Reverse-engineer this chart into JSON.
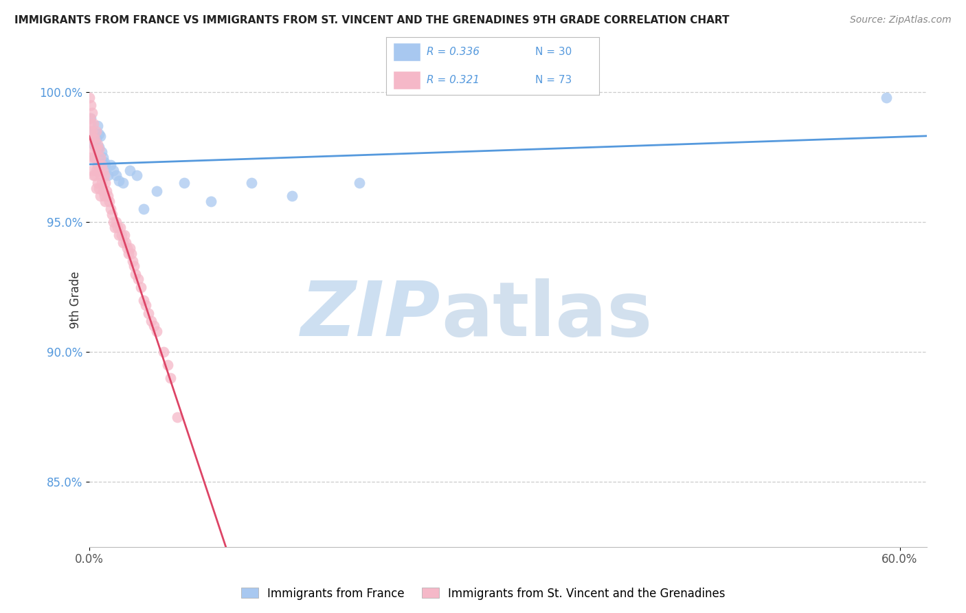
{
  "title": "IMMIGRANTS FROM FRANCE VS IMMIGRANTS FROM ST. VINCENT AND THE GRENADINES 9TH GRADE CORRELATION CHART",
  "source": "Source: ZipAtlas.com",
  "ylabel": "9th Grade",
  "ytick_labels": [
    "85.0%",
    "90.0%",
    "95.0%",
    "100.0%"
  ],
  "ytick_values": [
    0.85,
    0.9,
    0.95,
    1.0
  ],
  "legend_blue_r": "R = 0.336",
  "legend_blue_n": "N = 30",
  "legend_pink_r": "R = 0.321",
  "legend_pink_n": "N = 73",
  "legend_blue_label": "Immigrants from France",
  "legend_pink_label": "Immigrants from St. Vincent and the Grenadines",
  "blue_color": "#A8C8F0",
  "pink_color": "#F5B8C8",
  "blue_line_color": "#5599DD",
  "pink_line_color": "#DD4466",
  "blue_scatter_x": [
    0.001,
    0.002,
    0.003,
    0.004,
    0.005,
    0.006,
    0.006,
    0.007,
    0.007,
    0.008,
    0.009,
    0.01,
    0.011,
    0.012,
    0.014,
    0.016,
    0.018,
    0.02,
    0.022,
    0.025,
    0.03,
    0.035,
    0.04,
    0.05,
    0.07,
    0.09,
    0.12,
    0.15,
    0.2,
    0.59
  ],
  "blue_scatter_y": [
    0.99,
    0.985,
    0.98,
    0.975,
    0.982,
    0.987,
    0.978,
    0.984,
    0.979,
    0.983,
    0.977,
    0.975,
    0.973,
    0.972,
    0.968,
    0.972,
    0.97,
    0.968,
    0.966,
    0.965,
    0.97,
    0.968,
    0.955,
    0.962,
    0.965,
    0.958,
    0.965,
    0.96,
    0.965,
    0.998
  ],
  "pink_scatter_x": [
    0.0003,
    0.0005,
    0.0007,
    0.001,
    0.001,
    0.001,
    0.001,
    0.002,
    0.002,
    0.002,
    0.002,
    0.003,
    0.003,
    0.003,
    0.003,
    0.004,
    0.004,
    0.004,
    0.005,
    0.005,
    0.005,
    0.005,
    0.006,
    0.006,
    0.006,
    0.007,
    0.007,
    0.007,
    0.008,
    0.008,
    0.008,
    0.009,
    0.009,
    0.01,
    0.01,
    0.011,
    0.011,
    0.012,
    0.012,
    0.013,
    0.014,
    0.015,
    0.016,
    0.017,
    0.018,
    0.019,
    0.02,
    0.021,
    0.022,
    0.023,
    0.024,
    0.025,
    0.026,
    0.027,
    0.028,
    0.029,
    0.03,
    0.031,
    0.032,
    0.033,
    0.034,
    0.036,
    0.038,
    0.04,
    0.042,
    0.044,
    0.046,
    0.048,
    0.05,
    0.055,
    0.058,
    0.06,
    0.065
  ],
  "pink_scatter_y": [
    0.998,
    0.99,
    0.985,
    0.995,
    0.988,
    0.982,
    0.975,
    0.992,
    0.985,
    0.978,
    0.97,
    0.988,
    0.982,
    0.975,
    0.968,
    0.982,
    0.975,
    0.968,
    0.985,
    0.978,
    0.97,
    0.963,
    0.98,
    0.972,
    0.965,
    0.978,
    0.97,
    0.963,
    0.975,
    0.968,
    0.96,
    0.972,
    0.965,
    0.97,
    0.962,
    0.968,
    0.96,
    0.965,
    0.958,
    0.962,
    0.96,
    0.958,
    0.955,
    0.953,
    0.95,
    0.948,
    0.95,
    0.948,
    0.945,
    0.948,
    0.945,
    0.942,
    0.945,
    0.942,
    0.94,
    0.938,
    0.94,
    0.938,
    0.935,
    0.933,
    0.93,
    0.928,
    0.925,
    0.92,
    0.918,
    0.915,
    0.912,
    0.91,
    0.908,
    0.9,
    0.895,
    0.89,
    0.875
  ],
  "xlim_min": 0.0,
  "xlim_max": 0.62,
  "ylim_min": 0.825,
  "ylim_max": 1.015
}
